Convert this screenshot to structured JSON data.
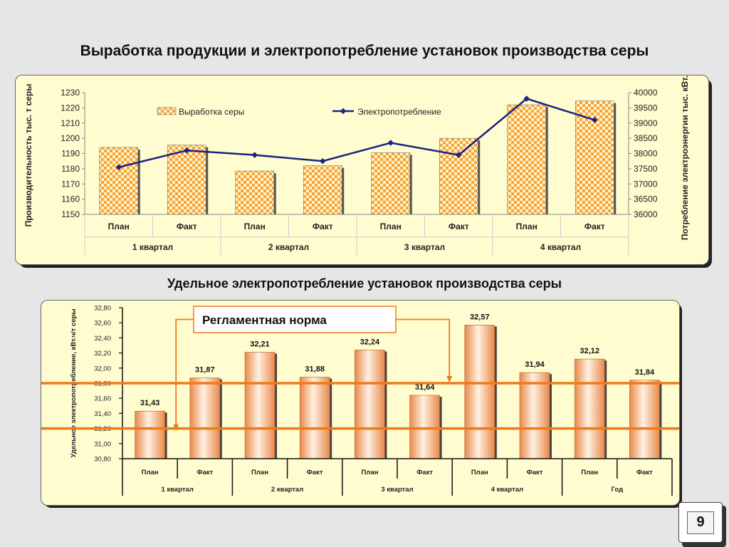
{
  "slide": {
    "title": "Выработка продукции и электропотребление установок производства серы",
    "subtitle": "Удельное электропотребление установок производства серы",
    "page_number": "9"
  },
  "colors": {
    "bar_fill": "#f4a43a",
    "bar_pattern": "#fff3c8",
    "line": "#1a237e",
    "norm_line": "#f07a1a",
    "panel_bg": "#fffdd0",
    "bar2_dark": "#e9894a",
    "bar2_light": "#fff1e2"
  },
  "chart_data": [
    {
      "type": "bar",
      "title": "",
      "categories": [
        "План",
        "Факт",
        "План",
        "Факт",
        "План",
        "Факт",
        "План",
        "Факт"
      ],
      "groups": [
        "1 квартал",
        "2 квартал",
        "3 квартал",
        "4 квартал"
      ],
      "series": [
        {
          "name": "Выработка серы",
          "type": "bar",
          "axis": "left",
          "values": [
            1194,
            1195.5,
            1178.5,
            1182,
            1190.5,
            1200,
            1222,
            1224.5
          ]
        },
        {
          "name": "Электропотребление",
          "type": "line",
          "axis": "right",
          "values": [
            37550,
            38100,
            37950,
            37750,
            38350,
            37950,
            39800,
            39100
          ]
        }
      ],
      "ylabel": "Производительность тыс. т серы",
      "y2label": "Потребление электроэнергии тыс. кВт.ч",
      "ylim": [
        1150,
        1230
      ],
      "y2lim": [
        36000,
        40000
      ],
      "yticks": [
        "1150",
        "1160",
        "1170",
        "1180",
        "1190",
        "1200",
        "1210",
        "1220",
        "1230"
      ],
      "y2ticks": [
        "36000",
        "36500",
        "37000",
        "37500",
        "38000",
        "38500",
        "39000",
        "39500",
        "40000"
      ],
      "legend": "top"
    },
    {
      "type": "bar",
      "title": "",
      "categories": [
        "План",
        "Факт",
        "План",
        "Факт",
        "План",
        "Факт",
        "План",
        "Факт",
        "План",
        "Факт"
      ],
      "groups": [
        "1 квартал",
        "2 квартал",
        "3 квартал",
        "4 квартал",
        "Год"
      ],
      "values": [
        31.43,
        31.87,
        32.21,
        31.88,
        32.24,
        31.64,
        32.57,
        31.94,
        32.12,
        31.84
      ],
      "data_labels": [
        "31,43",
        "31,87",
        "32,21",
        "31,88",
        "32,24",
        "31,64",
        "32,57",
        "31,94",
        "32,12",
        "31,84"
      ],
      "ylabel": "Удельное электропотребление, кВт.ч/т серы",
      "ylim": [
        30.8,
        32.8
      ],
      "yticks": [
        "30,80",
        "31,00",
        "31,20",
        "31,40",
        "31,60",
        "31,80",
        "32,00",
        "32,20",
        "32,40",
        "32,60",
        "32,80"
      ],
      "norm_range": [
        31.2,
        31.8
      ],
      "norm_label": "Регламентная норма"
    }
  ]
}
